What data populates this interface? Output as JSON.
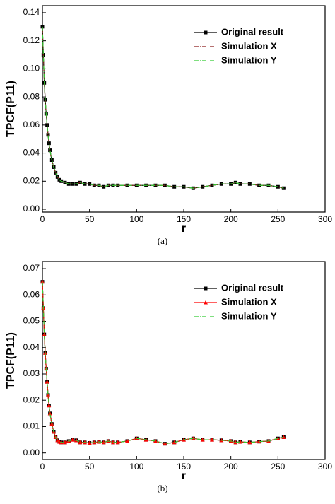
{
  "chart_data": [
    {
      "type": "line",
      "caption": "(a)",
      "x_label": "r",
      "y_label": "TPCF(P11)",
      "x": [
        0,
        1,
        2,
        3,
        4,
        5,
        6,
        7,
        8,
        10,
        12,
        14,
        16,
        18,
        20,
        24,
        28,
        32,
        36,
        40,
        45,
        50,
        55,
        60,
        65,
        70,
        75,
        80,
        90,
        100,
        110,
        120,
        130,
        140,
        150,
        160,
        170,
        180,
        190,
        200,
        205,
        210,
        220,
        230,
        240,
        250,
        256
      ],
      "series": [
        {
          "name": "Original result",
          "color": "#000000",
          "marker": "square",
          "dash": "solid",
          "values": [
            0.13,
            0.11,
            0.09,
            0.078,
            0.068,
            0.06,
            0.053,
            0.047,
            0.042,
            0.035,
            0.03,
            0.026,
            0.023,
            0.021,
            0.02,
            0.019,
            0.018,
            0.018,
            0.018,
            0.019,
            0.018,
            0.018,
            0.017,
            0.017,
            0.016,
            0.017,
            0.017,
            0.017,
            0.017,
            0.017,
            0.017,
            0.017,
            0.017,
            0.016,
            0.016,
            0.015,
            0.016,
            0.017,
            0.018,
            0.018,
            0.019,
            0.018,
            0.018,
            0.017,
            0.017,
            0.016,
            0.015
          ]
        },
        {
          "name": "Simulation X",
          "color": "#8b1a1a",
          "marker": "none",
          "dash": "dashdot",
          "values": [
            0.129,
            0.109,
            0.09,
            0.078,
            0.068,
            0.06,
            0.053,
            0.047,
            0.042,
            0.035,
            0.03,
            0.026,
            0.023,
            0.021,
            0.02,
            0.019,
            0.018,
            0.018,
            0.018,
            0.019,
            0.018,
            0.018,
            0.017,
            0.017,
            0.016,
            0.017,
            0.017,
            0.017,
            0.017,
            0.017,
            0.017,
            0.017,
            0.017,
            0.016,
            0.016,
            0.015,
            0.016,
            0.017,
            0.018,
            0.018,
            0.019,
            0.018,
            0.018,
            0.017,
            0.017,
            0.016,
            0.015
          ]
        },
        {
          "name": "Simulation Y",
          "color": "#33cc33",
          "marker": "none",
          "dash": "dashdot",
          "values": [
            0.13,
            0.11,
            0.091,
            0.078,
            0.068,
            0.06,
            0.053,
            0.047,
            0.042,
            0.035,
            0.03,
            0.026,
            0.023,
            0.021,
            0.02,
            0.019,
            0.018,
            0.018,
            0.018,
            0.019,
            0.018,
            0.018,
            0.017,
            0.017,
            0.016,
            0.017,
            0.017,
            0.017,
            0.017,
            0.017,
            0.017,
            0.017,
            0.017,
            0.016,
            0.016,
            0.015,
            0.016,
            0.017,
            0.018,
            0.018,
            0.019,
            0.018,
            0.018,
            0.017,
            0.017,
            0.016,
            0.015
          ]
        }
      ],
      "xlim": [
        0,
        300
      ],
      "xticks": [
        0,
        50,
        100,
        150,
        200,
        250,
        300
      ],
      "ylim": [
        -0.002,
        0.145
      ],
      "yticks": [
        {
          "value": 0,
          "label": "0.00"
        },
        {
          "value": 0.02,
          "label": "0.02"
        },
        {
          "value": 0.04,
          "label": "0.04"
        },
        {
          "value": 0.06,
          "label": "0.06"
        },
        {
          "value": 0.08,
          "label": "0.08"
        },
        {
          "value": 0.1,
          "label": "0.10"
        },
        {
          "value": 0.12,
          "label": "0.12"
        },
        {
          "value": 0.14,
          "label": "0.14"
        }
      ],
      "legend": "upper right"
    },
    {
      "type": "line",
      "caption": "(b)",
      "x_label": "r",
      "y_label": "TPCF(P11)",
      "x": [
        0,
        1,
        2,
        3,
        4,
        5,
        6,
        7,
        8,
        10,
        12,
        14,
        16,
        18,
        20,
        24,
        28,
        32,
        36,
        40,
        45,
        50,
        55,
        60,
        65,
        70,
        75,
        80,
        90,
        100,
        110,
        120,
        130,
        140,
        150,
        160,
        170,
        180,
        190,
        200,
        205,
        210,
        220,
        230,
        240,
        250,
        256
      ],
      "series": [
        {
          "name": "Original result",
          "color": "#000000",
          "marker": "square",
          "dash": "solid",
          "values": [
            0.065,
            0.055,
            0.045,
            0.038,
            0.032,
            0.027,
            0.022,
            0.018,
            0.015,
            0.011,
            0.008,
            0.006,
            0.0048,
            0.0042,
            0.004,
            0.004,
            0.0045,
            0.005,
            0.0048,
            0.004,
            0.004,
            0.0038,
            0.004,
            0.0042,
            0.004,
            0.0045,
            0.004,
            0.004,
            0.0045,
            0.0055,
            0.005,
            0.0045,
            0.0035,
            0.004,
            0.005,
            0.0055,
            0.005,
            0.005,
            0.0048,
            0.0045,
            0.004,
            0.0042,
            0.004,
            0.0043,
            0.0045,
            0.0055,
            0.006
          ]
        },
        {
          "name": "Simulation X",
          "color": "#ff0000",
          "marker": "triangle",
          "dash": "solid",
          "values": [
            0.065,
            0.055,
            0.045,
            0.038,
            0.032,
            0.027,
            0.022,
            0.018,
            0.015,
            0.011,
            0.008,
            0.006,
            0.0048,
            0.0042,
            0.004,
            0.004,
            0.0045,
            0.005,
            0.0048,
            0.004,
            0.004,
            0.0038,
            0.004,
            0.0042,
            0.004,
            0.0045,
            0.004,
            0.004,
            0.0045,
            0.0055,
            0.005,
            0.0045,
            0.0035,
            0.004,
            0.005,
            0.0055,
            0.005,
            0.005,
            0.0048,
            0.0045,
            0.004,
            0.0042,
            0.004,
            0.0043,
            0.0045,
            0.0055,
            0.006
          ]
        },
        {
          "name": "Simulation Y",
          "color": "#33cc33",
          "marker": "none",
          "dash": "dashdot",
          "values": [
            0.065,
            0.055,
            0.045,
            0.038,
            0.032,
            0.027,
            0.022,
            0.018,
            0.015,
            0.011,
            0.008,
            0.006,
            0.0048,
            0.0042,
            0.004,
            0.004,
            0.0045,
            0.005,
            0.0048,
            0.004,
            0.004,
            0.0038,
            0.004,
            0.0042,
            0.004,
            0.0045,
            0.004,
            0.004,
            0.0045,
            0.0055,
            0.005,
            0.0045,
            0.0035,
            0.004,
            0.005,
            0.0055,
            0.005,
            0.005,
            0.0048,
            0.0045,
            0.004,
            0.0042,
            0.004,
            0.0043,
            0.0045,
            0.0055,
            0.006
          ]
        }
      ],
      "xlim": [
        0,
        300
      ],
      "xticks": [
        0,
        50,
        100,
        150,
        200,
        250,
        300
      ],
      "ylim": [
        -0.0025,
        0.0727
      ],
      "yticks": [
        {
          "value": 0,
          "label": "0.00"
        },
        {
          "value": 0.01,
          "label": "0.01"
        },
        {
          "value": 0.02,
          "label": "0.02"
        },
        {
          "value": 0.03,
          "label": "0.03"
        },
        {
          "value": 0.04,
          "label": "0.04"
        },
        {
          "value": 0.05,
          "label": "0.05"
        },
        {
          "value": 0.06,
          "label": "0.06"
        },
        {
          "value": 0.07,
          "label": "0.07"
        }
      ],
      "legend": "upper right"
    }
  ]
}
